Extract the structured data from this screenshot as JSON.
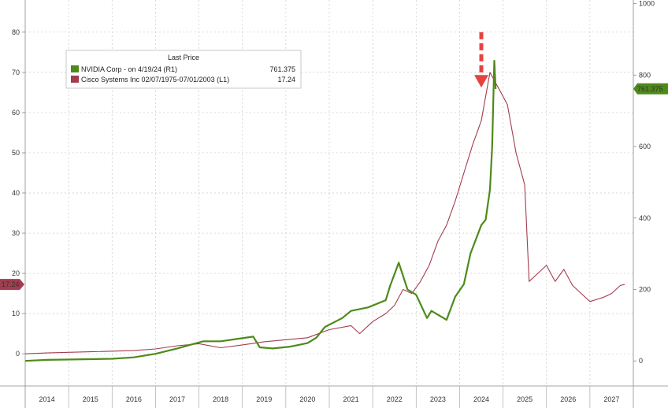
{
  "chart_data": {
    "type": "line",
    "title": "",
    "legend": {
      "header": "Last Price",
      "placement": "top-left",
      "entries": [
        {
          "label": "NVIDIA Corp -  on 4/19/24  (R1)",
          "value": "761.375",
          "color": "#4e8a1a"
        },
        {
          "label": "Cisco Systems Inc 02/07/1975-07/01/2003  (L1)",
          "value": "17.24",
          "color": "#a33c4f"
        }
      ]
    },
    "x_ticks": [
      "2014",
      "2015",
      "2016",
      "2017",
      "2018",
      "2019",
      "2020",
      "2021",
      "2022",
      "2023",
      "2024",
      "2025",
      "2026",
      "2027"
    ],
    "left_axis": {
      "ticks": [
        0,
        10,
        20,
        30,
        40,
        50,
        60,
        70,
        80
      ],
      "ylim": [
        -8,
        88
      ],
      "last_value_label": "17.24"
    },
    "right_axis": {
      "ticks": [
        0,
        200,
        400,
        600,
        800,
        1000
      ],
      "ylim": [
        -70,
        1010
      ],
      "last_value_label": "761.375"
    },
    "series": [
      {
        "name": "NVIDIA Corp",
        "axis": "right",
        "color": "#4e8a1a",
        "x": [
          2013.5,
          2014,
          2015,
          2015.5,
          2016,
          2016.5,
          2017,
          2017.3,
          2017.6,
          2018,
          2018.4,
          2018.75,
          2018.9,
          2019.2,
          2019.6,
          2020,
          2020.2,
          2020.4,
          2020.8,
          2021,
          2021.4,
          2021.8,
          2021.9,
          2022.1,
          2022.3,
          2022.5,
          2022.75,
          2022.85,
          2023.2,
          2023.4,
          2023.6,
          2023.75,
          2024.0,
          2024.1,
          2024.2,
          2024.25,
          2024.3,
          2024.33
        ],
        "y": [
          0,
          3,
          5,
          6,
          10,
          20,
          35,
          45,
          55,
          55,
          62,
          68,
          38,
          35,
          40,
          50,
          65,
          95,
          120,
          140,
          150,
          170,
          210,
          275,
          200,
          185,
          120,
          140,
          115,
          180,
          215,
          300,
          380,
          395,
          480,
          600,
          840,
          761
        ]
      },
      {
        "name": "Cisco Systems Inc",
        "axis": "left",
        "color": "#a33c4f",
        "x": [
          2013.5,
          2014,
          2015,
          2016,
          2016.5,
          2017,
          2017.5,
          2018,
          2018.5,
          2019,
          2019.5,
          2020,
          2020.5,
          2021,
          2021.2,
          2021.5,
          2021.8,
          2022,
          2022.2,
          2022.4,
          2022.6,
          2022.8,
          2023.0,
          2023.2,
          2023.4,
          2023.6,
          2023.8,
          2024.0,
          2024.2,
          2024.4,
          2024.6,
          2024.8,
          2025.0,
          2025.1,
          2025.3,
          2025.5,
          2025.7,
          2025.9,
          2026.1,
          2026.3,
          2026.5,
          2026.8,
          2027.0,
          2027.2,
          2027.3
        ],
        "y": [
          0,
          0.2,
          0.5,
          0.8,
          1.2,
          2,
          2.5,
          1.5,
          2.2,
          3,
          3.5,
          4,
          6,
          7,
          5,
          8,
          10,
          12,
          16,
          15,
          18,
          22,
          28,
          32,
          38,
          45,
          52,
          58,
          70,
          66,
          62,
          50,
          42,
          18,
          20,
          22,
          18,
          21,
          17,
          15,
          13,
          14,
          15,
          17,
          17.24
        ]
      }
    ],
    "annotations": [
      {
        "type": "arrow",
        "at_x": 2024.0,
        "value_left": 67,
        "color": "#e8423e"
      }
    ]
  }
}
